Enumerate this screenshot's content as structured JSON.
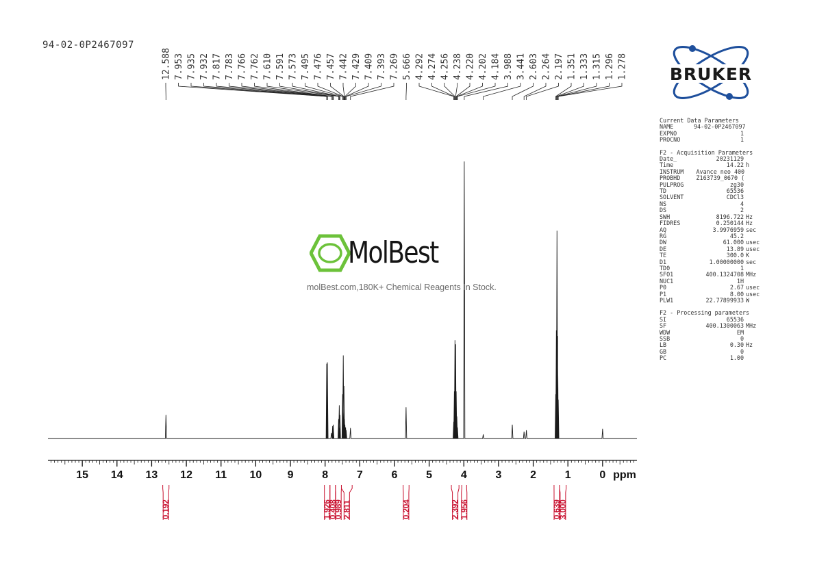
{
  "sample_name": "94-02-0P2467097",
  "chart_data": {
    "type": "line",
    "xlabel": "ppm",
    "xlim": [
      15.99,
      -0.99
    ],
    "x_ticks": [
      15,
      14,
      13,
      12,
      11,
      10,
      9,
      8,
      7,
      6,
      5,
      4,
      3,
      2,
      1,
      0
    ],
    "x_direction": "reversed",
    "peaks": [
      {
        "ppm": 12.588,
        "h": 0.085
      },
      {
        "ppm": 7.953,
        "h": 0.27
      },
      {
        "ppm": 7.935,
        "h": 0.275
      },
      {
        "ppm": 7.932,
        "h": 0.22
      },
      {
        "ppm": 7.817,
        "h": 0.02
      },
      {
        "ppm": 7.783,
        "h": 0.045
      },
      {
        "ppm": 7.766,
        "h": 0.05
      },
      {
        "ppm": 7.762,
        "h": 0.035
      },
      {
        "ppm": 7.61,
        "h": 0.07
      },
      {
        "ppm": 7.591,
        "h": 0.12
      },
      {
        "ppm": 7.573,
        "h": 0.085
      },
      {
        "ppm": 7.495,
        "h": 0.16
      },
      {
        "ppm": 7.476,
        "h": 0.3
      },
      {
        "ppm": 7.457,
        "h": 0.19
      },
      {
        "ppm": 7.442,
        "h": 0.07
      },
      {
        "ppm": 7.429,
        "h": 0.05
      },
      {
        "ppm": 7.409,
        "h": 0.04
      },
      {
        "ppm": 7.393,
        "h": 0.03
      },
      {
        "ppm": 7.269,
        "h": 0.038
      },
      {
        "ppm": 5.666,
        "h": 0.113
      },
      {
        "ppm": 4.292,
        "h": 0.06
      },
      {
        "ppm": 4.274,
        "h": 0.17
      },
      {
        "ppm": 4.256,
        "h": 0.355
      },
      {
        "ppm": 4.238,
        "h": 0.34
      },
      {
        "ppm": 4.22,
        "h": 0.17
      },
      {
        "ppm": 4.202,
        "h": 0.08
      },
      {
        "ppm": 4.184,
        "h": 0.04
      },
      {
        "ppm": 3.988,
        "h": 1.0
      },
      {
        "ppm": 3.441,
        "h": 0.015
      },
      {
        "ppm": 2.603,
        "h": 0.05
      },
      {
        "ppm": 2.264,
        "h": 0.025
      },
      {
        "ppm": 2.197,
        "h": 0.03
      },
      {
        "ppm": 1.351,
        "h": 0.16
      },
      {
        "ppm": 1.333,
        "h": 0.39
      },
      {
        "ppm": 1.315,
        "h": 0.75
      },
      {
        "ppm": 1.296,
        "h": 0.37
      },
      {
        "ppm": 1.278,
        "h": 0.14
      },
      {
        "ppm": 0.0,
        "h": 0.035
      }
    ],
    "peak_labels": [
      "12.588",
      "7.953",
      "7.935",
      "7.932",
      "7.817",
      "7.783",
      "7.766",
      "7.762",
      "7.610",
      "7.591",
      "7.573",
      "7.495",
      "7.476",
      "7.457",
      "7.442",
      "7.429",
      "7.409",
      "7.393",
      "7.269",
      "5.666",
      "4.292",
      "4.274",
      "4.256",
      "4.238",
      "4.220",
      "4.202",
      "4.184",
      "3.988",
      "3.441",
      "2.603",
      "2.264",
      "2.197",
      "1.351",
      "1.333",
      "1.315",
      "1.296",
      "1.278"
    ],
    "integrals": [
      {
        "value": "0.192",
        "from": 12.68,
        "to": 12.5
      },
      {
        "value": "1.926",
        "from": 8.02,
        "to": 7.86
      },
      {
        "value": "0.408",
        "from": 7.86,
        "to": 7.7
      },
      {
        "value": "0.989",
        "from": 7.7,
        "to": 7.53
      },
      {
        "value": "2.811",
        "from": 7.53,
        "to": 7.22
      },
      {
        "value": "0.204",
        "from": 5.75,
        "to": 5.58
      },
      {
        "value": "2.392",
        "from": 4.36,
        "to": 4.14
      },
      {
        "value": "1.956",
        "from": 4.06,
        "to": 3.92
      },
      {
        "value": "0.639",
        "from": 1.4,
        "to": 1.24
      },
      {
        "value": "3.000",
        "from": 1.24,
        "to": 1.05
      }
    ],
    "colors": {
      "spectrum": "#1a1a1a",
      "integral": "#c8102e",
      "axis": "#111111"
    }
  },
  "params": {
    "current": {
      "title": "Current Data Parameters",
      "rows": [
        [
          "NAME",
          "94-02-0P2467097",
          ""
        ],
        [
          "EXPNO",
          "1",
          ""
        ],
        [
          "PROCNO",
          "1",
          ""
        ]
      ]
    },
    "acq": {
      "title": "F2 - Acquisition Parameters",
      "rows": [
        [
          "Date_",
          "20231129",
          ""
        ],
        [
          "Time",
          "14.22",
          "h"
        ],
        [
          "INSTRUM",
          "Avance neo 400",
          ""
        ],
        [
          "PROBHD",
          "Z163739_0670 (",
          ""
        ],
        [
          "PULPROG",
          "zg30",
          ""
        ],
        [
          "TD",
          "65536",
          ""
        ],
        [
          "SOLVENT",
          "CDCl3",
          ""
        ],
        [
          "NS",
          "4",
          ""
        ],
        [
          "DS",
          "2",
          ""
        ],
        [
          "SWH",
          "8196.722",
          "Hz"
        ],
        [
          "FIDRES",
          "0.250144",
          "Hz"
        ],
        [
          "AQ",
          "3.9976959",
          "sec"
        ],
        [
          "RG",
          "45.2",
          ""
        ],
        [
          "DW",
          "61.000",
          "usec"
        ],
        [
          "DE",
          "13.89",
          "usec"
        ],
        [
          "TE",
          "300.0",
          "K"
        ],
        [
          "D1",
          "1.00000000",
          "sec"
        ],
        [
          "TD0",
          "1",
          ""
        ],
        [
          "SFO1",
          "400.1324708",
          "MHz"
        ],
        [
          "NUC1",
          "1H",
          ""
        ],
        [
          "P0",
          "2.67",
          "usec"
        ],
        [
          "P1",
          "8.00",
          "usec"
        ],
        [
          "PLW1",
          "22.77899933",
          "W"
        ]
      ]
    },
    "proc": {
      "title": "F2 - Processing parameters",
      "rows": [
        [
          "SI",
          "65536",
          ""
        ],
        [
          "SF",
          "400.1300063",
          "MHz"
        ],
        [
          "WDW",
          "EM",
          ""
        ],
        [
          "SSB",
          "0",
          ""
        ],
        [
          "LB",
          "0.30",
          "Hz"
        ],
        [
          "GB",
          "0",
          ""
        ],
        [
          "PC",
          "1.00",
          ""
        ]
      ]
    }
  },
  "logo": {
    "text": "BRUKER",
    "colors": {
      "text": "#1a1a1a",
      "orbit": "#1e4f9c"
    }
  },
  "watermark": {
    "brand": "MolBest",
    "tagline": "molBest.com,180K+ Chemical Reagents In Stock.",
    "icon": "benzene-icon",
    "colors": {
      "icon": "#6cc23a"
    }
  }
}
